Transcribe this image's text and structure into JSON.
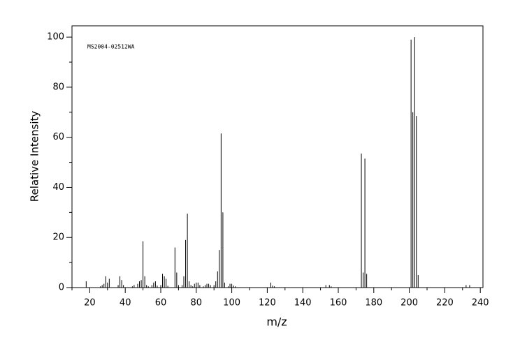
{
  "chart_data": {
    "type": "stem",
    "annotation": "MS2004-02512WA",
    "xlabel": "m/z",
    "ylabel": "Relative Intensity",
    "color": "#000000",
    "x": [
      18,
      26,
      27,
      28,
      29,
      30,
      31,
      36,
      37,
      38,
      39,
      44,
      45,
      47,
      48,
      49,
      50,
      51,
      52,
      53,
      55,
      56,
      57,
      58,
      60,
      61,
      62,
      63,
      64,
      68,
      69,
      70,
      72,
      73,
      74,
      75,
      76,
      77,
      78,
      79,
      80,
      81,
      82,
      84,
      85,
      86,
      87,
      88,
      90,
      91,
      92,
      93,
      94,
      95,
      96,
      98,
      99,
      100,
      101,
      102,
      122,
      123,
      124,
      153,
      155,
      156,
      173,
      174,
      175,
      176,
      201,
      202,
      203,
      204,
      205,
      232,
      234
    ],
    "values": [
      2.5,
      0.5,
      1,
      1.5,
      4.5,
      2,
      3.5,
      1,
      4.5,
      3,
      1,
      0.5,
      1,
      1.5,
      2.5,
      3,
      18.5,
      4.5,
      1,
      0.5,
      1,
      2,
      2.5,
      0.8,
      1,
      5.5,
      4.5,
      3.5,
      0.7,
      16,
      6,
      1,
      1,
      4.5,
      19,
      29.5,
      2.5,
      1,
      0.5,
      1.5,
      2,
      2,
      1,
      0.5,
      1,
      1.5,
      1.5,
      1,
      1,
      2.5,
      6.5,
      15,
      61.5,
      30,
      2,
      0.5,
      1.5,
      1.5,
      0.8,
      0.5,
      2,
      0.8,
      0.5,
      1,
      1,
      0.5,
      53.5,
      6,
      51.5,
      5.5,
      99,
      70,
      100,
      68.5,
      5,
      1,
      1
    ],
    "xlim": [
      10,
      241.5
    ],
    "ylim": [
      0,
      104.5
    ],
    "xticks": [
      20,
      40,
      60,
      80,
      100,
      120,
      140,
      160,
      180,
      200,
      220,
      240
    ],
    "xminorticks": [
      10,
      30,
      50,
      70,
      90,
      110,
      130,
      150,
      170,
      190,
      210,
      230
    ],
    "yticks": [
      0,
      20,
      40,
      60,
      80,
      100
    ],
    "yminorticks": [
      10,
      30,
      50,
      70,
      90
    ]
  }
}
